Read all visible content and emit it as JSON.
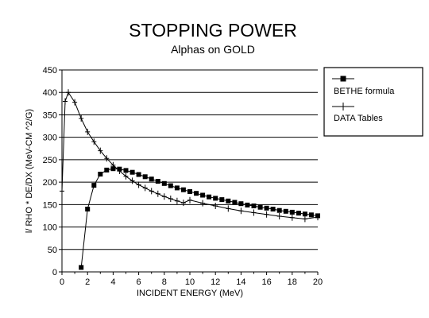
{
  "chart_data": {
    "type": "line",
    "title": "STOPPING POWER",
    "subtitle": "Alphas on GOLD",
    "xlabel": "INCIDENT ENERGY (MeV)",
    "ylabel": "l/ RHO * DE/DX (MeV-CM ^2/G)",
    "xlim": [
      0,
      20
    ],
    "ylim": [
      0,
      450
    ],
    "x_ticks": [
      0,
      2,
      4,
      6,
      8,
      10,
      12,
      14,
      16,
      18,
      20
    ],
    "y_ticks": [
      0,
      50,
      100,
      150,
      200,
      250,
      300,
      350,
      400,
      450
    ],
    "grid": "horizontal",
    "legend_position": "right",
    "series": [
      {
        "name": "BETHE formula",
        "marker": "square",
        "color": "#000000",
        "x": [
          1.5,
          2.0,
          2.5,
          3.0,
          3.5,
          4.0,
          4.5,
          5.0,
          5.5,
          6.0,
          6.5,
          7.0,
          7.5,
          8.0,
          8.5,
          9.0,
          9.5,
          10.0,
          10.5,
          11.0,
          11.5,
          12.0,
          12.5,
          13.0,
          13.5,
          14.0,
          14.5,
          15.0,
          15.5,
          16.0,
          16.5,
          17.0,
          17.5,
          18.0,
          18.5,
          19.0,
          19.5,
          20.0
        ],
        "y": [
          10,
          140,
          193,
          218,
          227,
          230,
          229,
          226,
          222,
          217,
          212,
          207,
          202,
          197,
          192,
          187,
          183,
          179,
          175,
          171,
          167,
          164,
          161,
          158,
          155,
          152,
          149,
          147,
          144,
          142,
          140,
          137,
          135,
          133,
          131,
          129,
          127,
          125
        ]
      },
      {
        "name": "DATA Tables",
        "marker": "plus",
        "color": "#000000",
        "x": [
          0.0,
          0.25,
          0.5,
          1.0,
          1.5,
          2.0,
          2.5,
          3.0,
          3.5,
          4.0,
          4.5,
          5.0,
          5.5,
          6.0,
          6.5,
          7.0,
          7.5,
          8.0,
          8.5,
          9.0,
          9.5,
          10.0,
          11.0,
          12.0,
          13.0,
          14.0,
          15.0,
          16.0,
          17.0,
          18.0,
          19.0,
          20.0
        ],
        "y": [
          180,
          380,
          400,
          378,
          342,
          312,
          290,
          270,
          253,
          238,
          225,
          213,
          203,
          194,
          187,
          180,
          174,
          168,
          163,
          158,
          154,
          160,
          153,
          147,
          141,
          136,
          132,
          128,
          124,
          121,
          118,
          122
        ]
      }
    ]
  }
}
